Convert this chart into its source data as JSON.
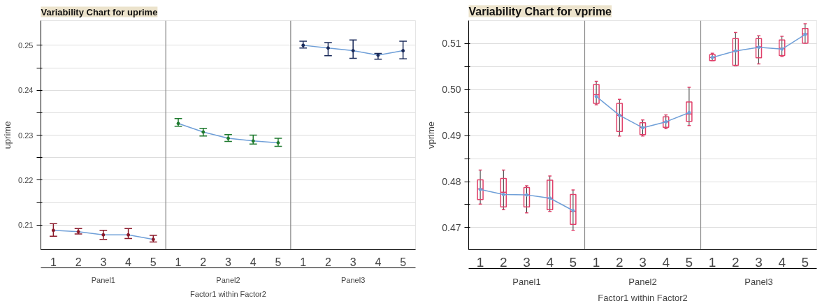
{
  "chart_data": [
    {
      "type": "line",
      "title": "Variability Chart for uprime",
      "ylabel": "uprime",
      "xlabel": "Factor1 within Factor2",
      "categories": [
        "1",
        "2",
        "3",
        "4",
        "5",
        "1",
        "2",
        "3",
        "4",
        "5",
        "1",
        "2",
        "3",
        "4",
        "5"
      ],
      "annotations": [
        "Panel1",
        "Panel2",
        "Panel3"
      ],
      "ylim": [
        0.2045,
        0.2555
      ],
      "yticks": [
        0.21,
        {
          "value": 0.215,
          "label": null
        },
        0.22,
        {
          "value": 0.225,
          "label": null
        },
        0.23,
        {
          "value": 0.235,
          "label": null
        },
        0.24,
        {
          "value": 0.245,
          "label": null
        },
        0.25
      ],
      "grid": "y",
      "series": [
        {
          "color": "#6f9fd8",
          "marker": "circle",
          "colors": [
            "#8b1a2b",
            "#8b1a2b",
            "#8b1a2b",
            "#8b1a2b",
            "#8b1a2b",
            "#1e7a2e",
            "#1e7a2e",
            "#1e7a2e",
            "#1e7a2e",
            "#1e7a2e",
            "#1a2a5a",
            "#1a2a5a",
            "#1a2a5a",
            "#1a2a5a",
            "#1a2a5a"
          ],
          "values": [
            0.2088,
            0.2085,
            0.2078,
            0.2078,
            0.2068,
            0.2326,
            0.2307,
            0.2293,
            0.2287,
            0.2283,
            0.25,
            0.2494,
            0.2488,
            0.2478,
            0.2488
          ],
          "errors": [
            [
              0.2075,
              0.2103
            ],
            [
              0.208,
              0.2092
            ],
            [
              0.2068,
              0.2088
            ],
            [
              0.207,
              0.2092
            ],
            [
              0.2062,
              0.2077
            ],
            [
              0.232,
              0.2337
            ],
            [
              0.2298,
              0.2315
            ],
            [
              0.2286,
              0.2301
            ],
            [
              0.228,
              0.23
            ],
            [
              0.2275,
              0.2293
            ],
            [
              0.2494,
              0.2509
            ],
            [
              0.2477,
              0.2506
            ],
            [
              0.2471,
              0.2512
            ],
            [
              0.2469,
              0.2482
            ],
            [
              0.247,
              0.2509
            ]
          ]
        }
      ]
    },
    {
      "type": "box",
      "title": "Variability Chart for vprime",
      "ylabel": "vprime",
      "xlabel": "Factor1 within Factor2",
      "categories": [
        "1",
        "2",
        "3",
        "4",
        "5",
        "1",
        "2",
        "3",
        "4",
        "5",
        "1",
        "2",
        "3",
        "4",
        "5"
      ],
      "annotations": [
        "Panel1",
        "Panel2",
        "Panel3"
      ],
      "ylim": [
        0.4652,
        0.515
      ],
      "yticks": [
        0.47,
        {
          "value": 0.475,
          "label": null
        },
        0.48,
        {
          "value": 0.485,
          "label": null
        },
        0.49,
        {
          "value": 0.495,
          "label": null
        },
        {
          "value": 0.5,
          "label": "0.50"
        },
        {
          "value": 0.505,
          "label": null
        },
        0.51
      ],
      "grid": "y",
      "series": [
        {
          "type": "box",
          "color": "#e0406a",
          "boxes": [
            {
              "low": 0.4751,
              "q1": 0.4761,
              "median": 0.4784,
              "q3": 0.4804,
              "high": 0.4825
            },
            {
              "low": 0.4739,
              "q1": 0.4745,
              "median": 0.4777,
              "q3": 0.4807,
              "high": 0.4825
            },
            {
              "low": 0.4732,
              "q1": 0.4745,
              "median": 0.4771,
              "q3": 0.4787,
              "high": 0.4791
            },
            {
              "low": 0.4735,
              "q1": 0.4739,
              "median": 0.4764,
              "q3": 0.4803,
              "high": 0.4812
            },
            {
              "low": 0.4694,
              "q1": 0.4707,
              "median": 0.4735,
              "q3": 0.4772,
              "high": 0.4782
            },
            {
              "low": 0.4967,
              "q1": 0.497,
              "median": 0.4989,
              "q3": 0.5011,
              "high": 0.5018
            },
            {
              "low": 0.4899,
              "q1": 0.4909,
              "median": 0.4944,
              "q3": 0.497,
              "high": 0.4979
            },
            {
              "low": 0.4899,
              "q1": 0.4902,
              "median": 0.4918,
              "q3": 0.4928,
              "high": 0.4934
            },
            {
              "low": 0.4915,
              "q1": 0.4918,
              "median": 0.493,
              "q3": 0.4941,
              "high": 0.4945
            },
            {
              "low": 0.4922,
              "q1": 0.4931,
              "median": 0.4947,
              "q3": 0.4973,
              "high": 0.5005
            },
            {
              "low": 0.5063,
              "q1": 0.5063,
              "median": 0.507,
              "q3": 0.5076,
              "high": 0.5079
            },
            {
              "low": 0.5052,
              "q1": 0.5053,
              "median": 0.5084,
              "q3": 0.5111,
              "high": 0.5124
            },
            {
              "low": 0.5056,
              "q1": 0.5069,
              "median": 0.5093,
              "q3": 0.5111,
              "high": 0.5117
            },
            {
              "low": 0.5072,
              "q1": 0.5074,
              "median": 0.509,
              "q3": 0.5108,
              "high": 0.5116
            },
            {
              "low": 0.5101,
              "q1": 0.5101,
              "median": 0.5121,
              "q3": 0.5133,
              "high": 0.5143
            }
          ]
        },
        {
          "type": "line",
          "color": "#6f9fd8",
          "marker": "circle",
          "values": [
            0.4783,
            0.4772,
            0.4771,
            0.4764,
            0.4737,
            0.4985,
            0.4944,
            0.4917,
            0.493,
            0.495,
            0.507,
            0.5084,
            0.5092,
            0.5088,
            0.512
          ]
        }
      ]
    }
  ]
}
